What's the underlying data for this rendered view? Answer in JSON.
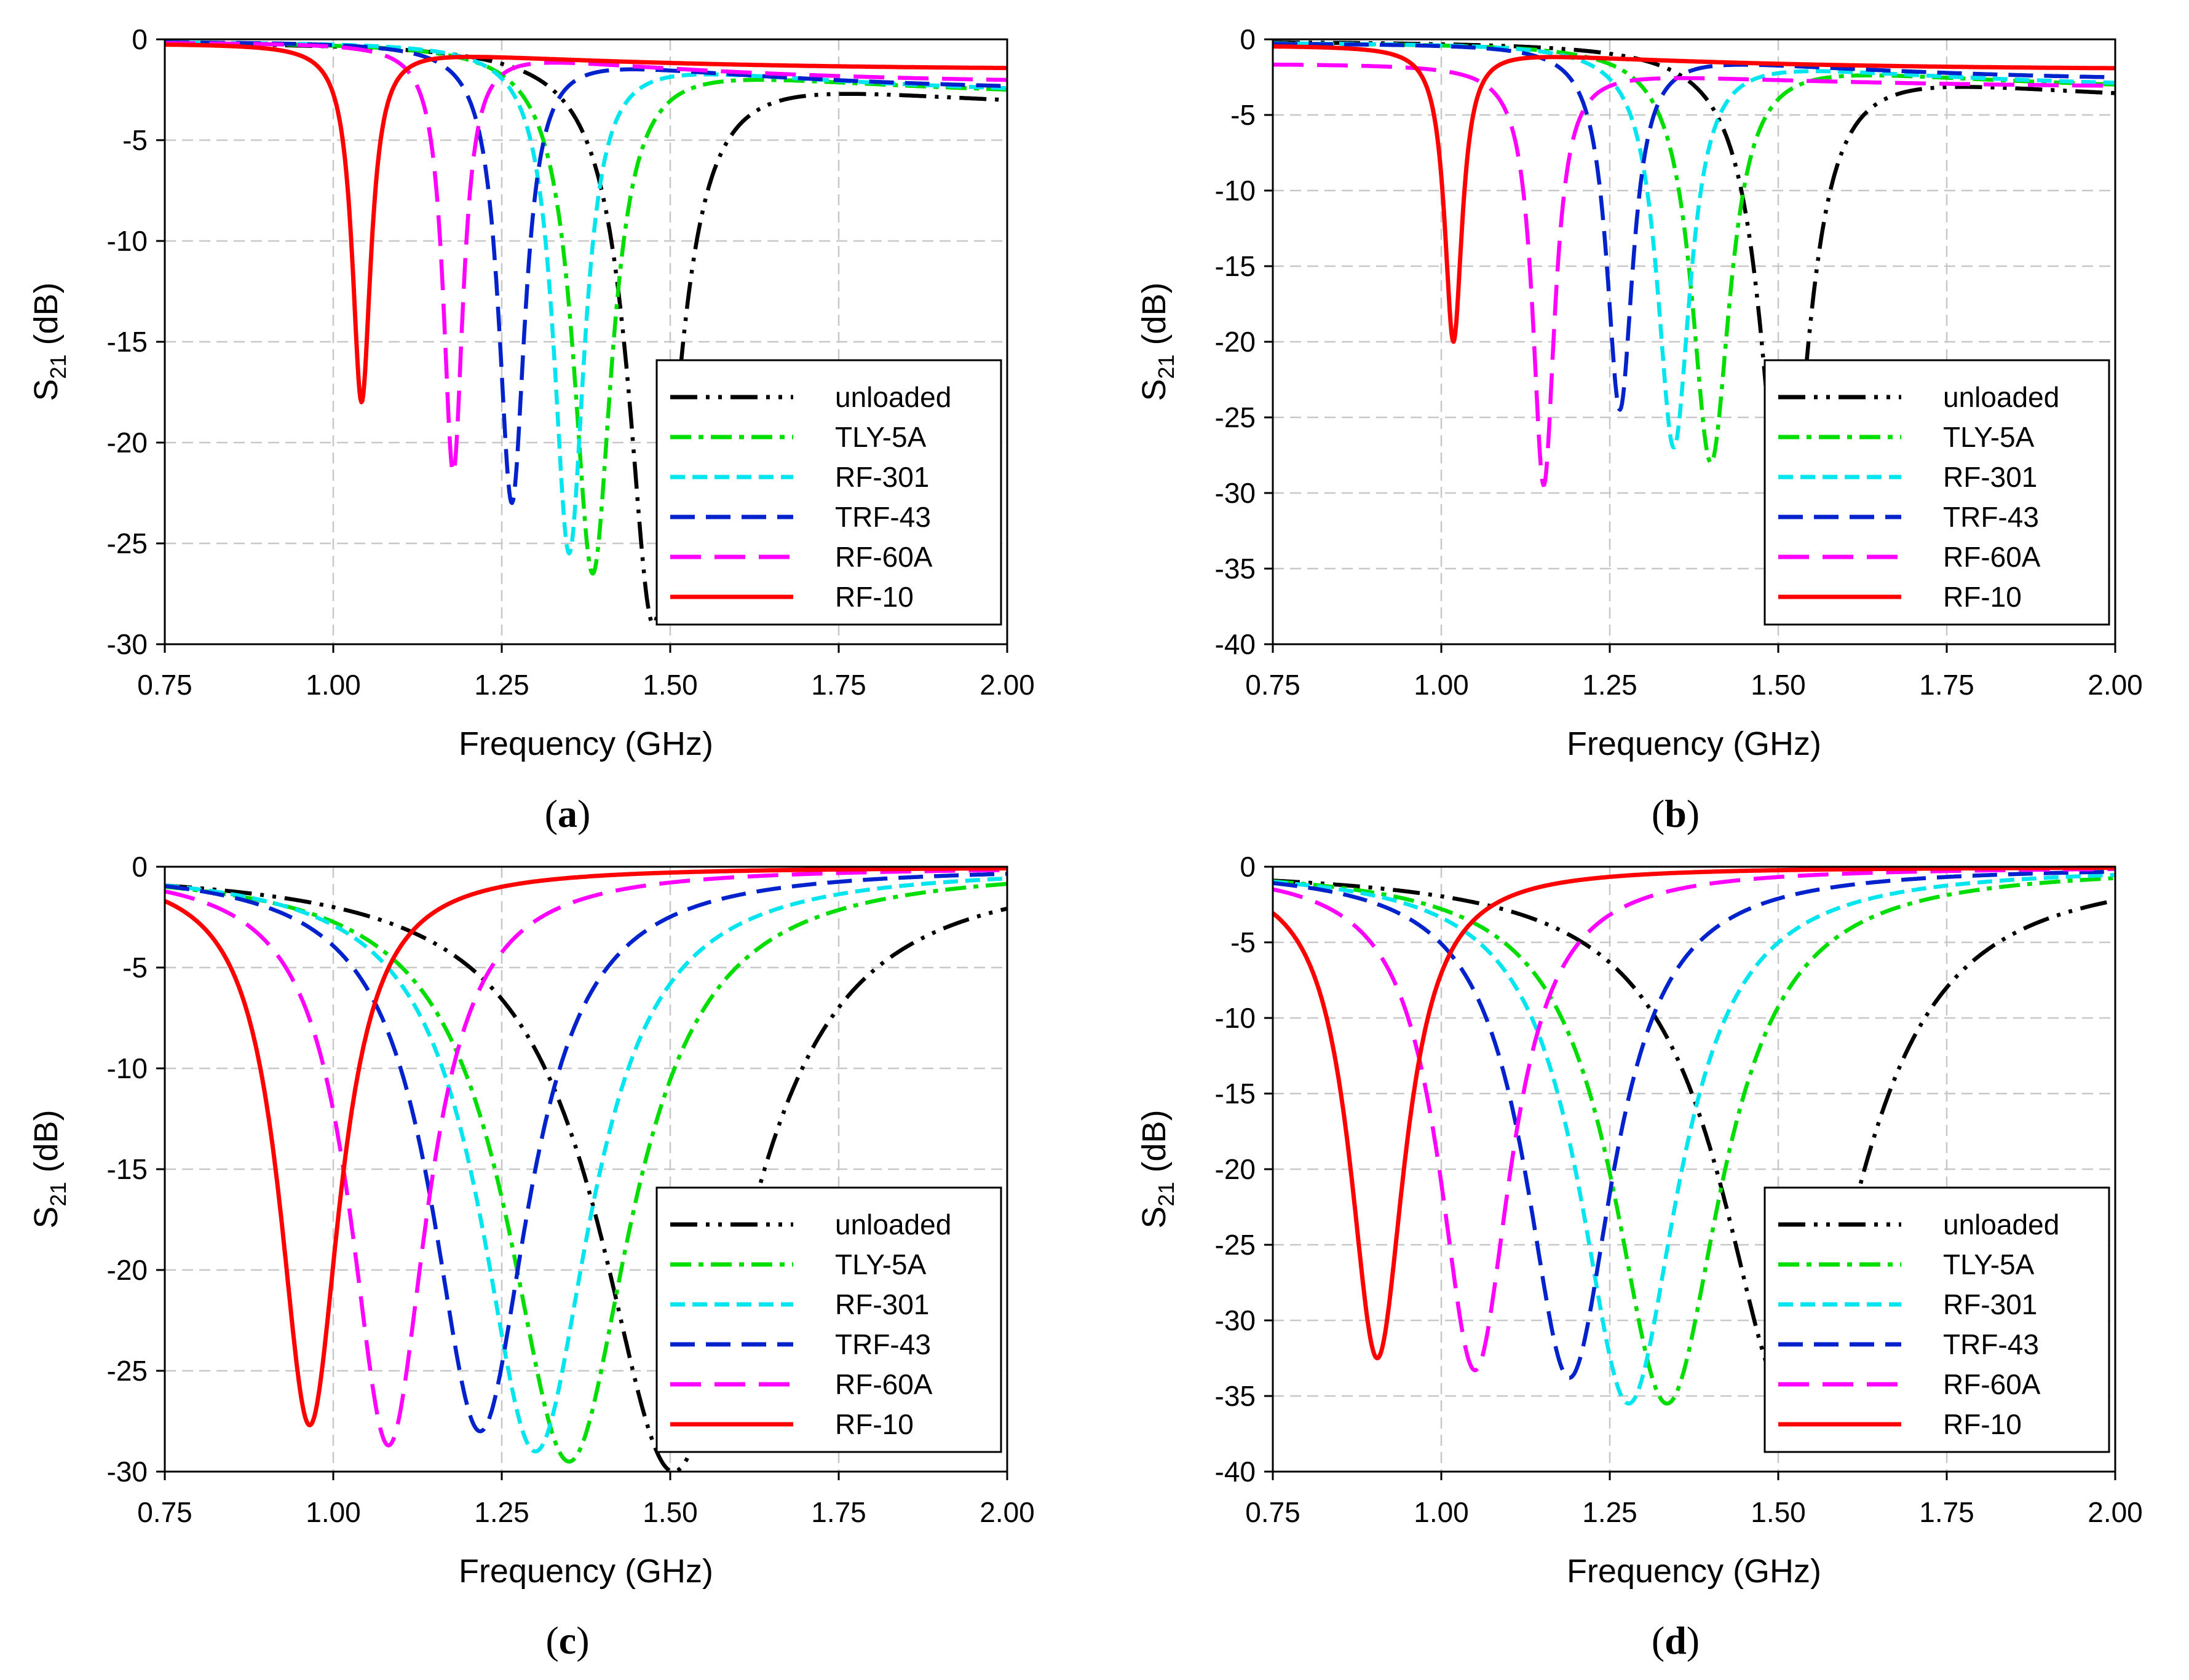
{
  "colors": {
    "unloaded": "#000000",
    "TLY-5A": "#00dd00",
    "RF-301": "#00e5ee",
    "TRF-43": "#0022cc",
    "RF-60A": "#ff00ff",
    "RF-10": "#ff0000",
    "grid": "#c8c8c8"
  },
  "legend_labels": [
    "unloaded",
    "TLY-5A",
    "RF-301",
    "TRF-43",
    "RF-60A",
    "RF-10"
  ],
  "chart_data": [
    {
      "id": "a",
      "type": "line",
      "caption_letter": "a",
      "xlabel": "Frequency (GHz)",
      "ylabel_main": "S",
      "ylabel_sub": "21",
      "ylabel_unit": " (dB)",
      "xlim": [
        0.75,
        2.0
      ],
      "ylim": [
        -30,
        0
      ],
      "xticks": [
        "0.75",
        "1.00",
        "1.25",
        "1.50",
        "1.75",
        "2.00"
      ],
      "yticks": [
        "0",
        "-5",
        "-10",
        "-15",
        "-20",
        "-25",
        "-30"
      ],
      "grid": true,
      "legend_position": "bottom-right",
      "series": [
        {
          "name": "unloaded",
          "f0": 1.475,
          "min": -29.0,
          "base": -0.1,
          "high": -3.6,
          "w": 0.045
        },
        {
          "name": "TLY-5A",
          "f0": 1.385,
          "min": -26.5,
          "base": -0.1,
          "high": -2.9,
          "w": 0.035
        },
        {
          "name": "RF-301",
          "f0": 1.35,
          "min": -25.5,
          "base": -0.1,
          "high": -2.8,
          "w": 0.028
        },
        {
          "name": "TRF-43",
          "f0": 1.265,
          "min": -23.0,
          "base": -0.1,
          "high": -2.6,
          "w": 0.024
        },
        {
          "name": "RF-60A",
          "f0": 1.178,
          "min": -21.5,
          "base": -0.15,
          "high": -2.2,
          "w": 0.018
        },
        {
          "name": "RF-10",
          "f0": 1.042,
          "min": -18.0,
          "base": -0.2,
          "high": -1.5,
          "w": 0.017
        }
      ]
    },
    {
      "id": "b",
      "type": "line",
      "caption_letter": "b",
      "xlabel": "Frequency (GHz)",
      "ylabel_main": "S",
      "ylabel_sub": "21",
      "ylabel_unit": " (dB)",
      "xlim": [
        0.75,
        2.0
      ],
      "ylim": [
        -40,
        0
      ],
      "xticks": [
        "0.75",
        "1.00",
        "1.25",
        "1.50",
        "1.75",
        "2.00"
      ],
      "yticks": [
        "0",
        "-5",
        "-10",
        "-15",
        "-20",
        "-25",
        "-30",
        "-35",
        "-40"
      ],
      "grid": true,
      "legend_position": "bottom-right",
      "series": [
        {
          "name": "unloaded",
          "f0": 1.51,
          "min": -33.5,
          "base": -0.1,
          "high": -4.4,
          "w": 0.042
        },
        {
          "name": "TLY-5A",
          "f0": 1.4,
          "min": -28.0,
          "base": -0.2,
          "high": -3.5,
          "w": 0.035
        },
        {
          "name": "RF-301",
          "f0": 1.345,
          "min": -27.0,
          "base": -0.2,
          "high": -3.3,
          "w": 0.03
        },
        {
          "name": "TRF-43",
          "f0": 1.265,
          "min": -24.5,
          "base": -0.25,
          "high": -2.8,
          "w": 0.024
        },
        {
          "name": "RF-60A",
          "f0": 1.152,
          "min": -29.5,
          "base": -1.6,
          "high": -3.2,
          "w": 0.02
        },
        {
          "name": "RF-10",
          "f0": 1.018,
          "min": -20.0,
          "base": -0.4,
          "high": -2.0,
          "w": 0.016
        }
      ]
    },
    {
      "id": "c",
      "type": "line",
      "caption_letter": "c",
      "xlabel": "Frequency (GHz)",
      "ylabel_main": "S",
      "ylabel_sub": "21",
      "ylabel_unit": " (dB)",
      "xlim": [
        0.75,
        2.0
      ],
      "ylim": [
        -30,
        0
      ],
      "xticks": [
        "0.75",
        "1.00",
        "1.25",
        "1.50",
        "1.75",
        "2.00"
      ],
      "yticks": [
        "0",
        "-5",
        "-10",
        "-15",
        "-20",
        "-25",
        "-30"
      ],
      "grid": true,
      "legend_position": "bottom-right",
      "series": [
        {
          "name": "unloaded",
          "f0": 1.505,
          "min": -30.0,
          "base": 0.0,
          "high": 0.0,
          "w": 0.135
        },
        {
          "name": "TLY-5A",
          "f0": 1.35,
          "min": -29.5,
          "base": 0.0,
          "high": 0.0,
          "w": 0.112
        },
        {
          "name": "RF-301",
          "f0": 1.3,
          "min": -29.0,
          "base": 0.0,
          "high": 0.0,
          "w": 0.1
        },
        {
          "name": "TRF-43",
          "f0": 1.218,
          "min": -28.0,
          "base": 0.0,
          "high": 0.0,
          "w": 0.088
        },
        {
          "name": "RF-60A",
          "f0": 1.082,
          "min": -28.7,
          "base": 0.0,
          "high": 0.0,
          "w": 0.07
        },
        {
          "name": "RF-10",
          "f0": 0.965,
          "min": -27.7,
          "base": 0.0,
          "high": 0.0,
          "w": 0.055
        }
      ]
    },
    {
      "id": "d",
      "type": "line",
      "caption_letter": "d",
      "xlabel": "Frequency (GHz)",
      "ylabel_main": "S",
      "ylabel_sub": "21",
      "ylabel_unit": " (dB)",
      "xlim": [
        0.75,
        2.0
      ],
      "ylim": [
        -40,
        0
      ],
      "xticks": [
        "0.75",
        "1.00",
        "1.25",
        "1.50",
        "1.75",
        "2.00"
      ],
      "yticks": [
        "0",
        "-5",
        "-10",
        "-15",
        "-20",
        "-25",
        "-30",
        "-35",
        "-40"
      ],
      "grid": true,
      "legend_position": "bottom-right",
      "series": [
        {
          "name": "unloaded",
          "f0": 1.518,
          "min": -35.5,
          "base": 0.0,
          "high": 0.0,
          "w": 0.125
        },
        {
          "name": "TLY-5A",
          "f0": 1.335,
          "min": -35.5,
          "base": 0.0,
          "high": 0.0,
          "w": 0.098
        },
        {
          "name": "RF-301",
          "f0": 1.278,
          "min": -35.5,
          "base": 0.0,
          "high": 0.0,
          "w": 0.09
        },
        {
          "name": "TRF-43",
          "f0": 1.19,
          "min": -33.8,
          "base": 0.0,
          "high": 0.0,
          "w": 0.08
        },
        {
          "name": "RF-60A",
          "f0": 1.05,
          "min": -33.3,
          "base": 0.0,
          "high": 0.0,
          "w": 0.065
        },
        {
          "name": "RF-10",
          "f0": 0.905,
          "min": -32.5,
          "base": 0.0,
          "high": 0.0,
          "w": 0.05
        }
      ]
    }
  ]
}
